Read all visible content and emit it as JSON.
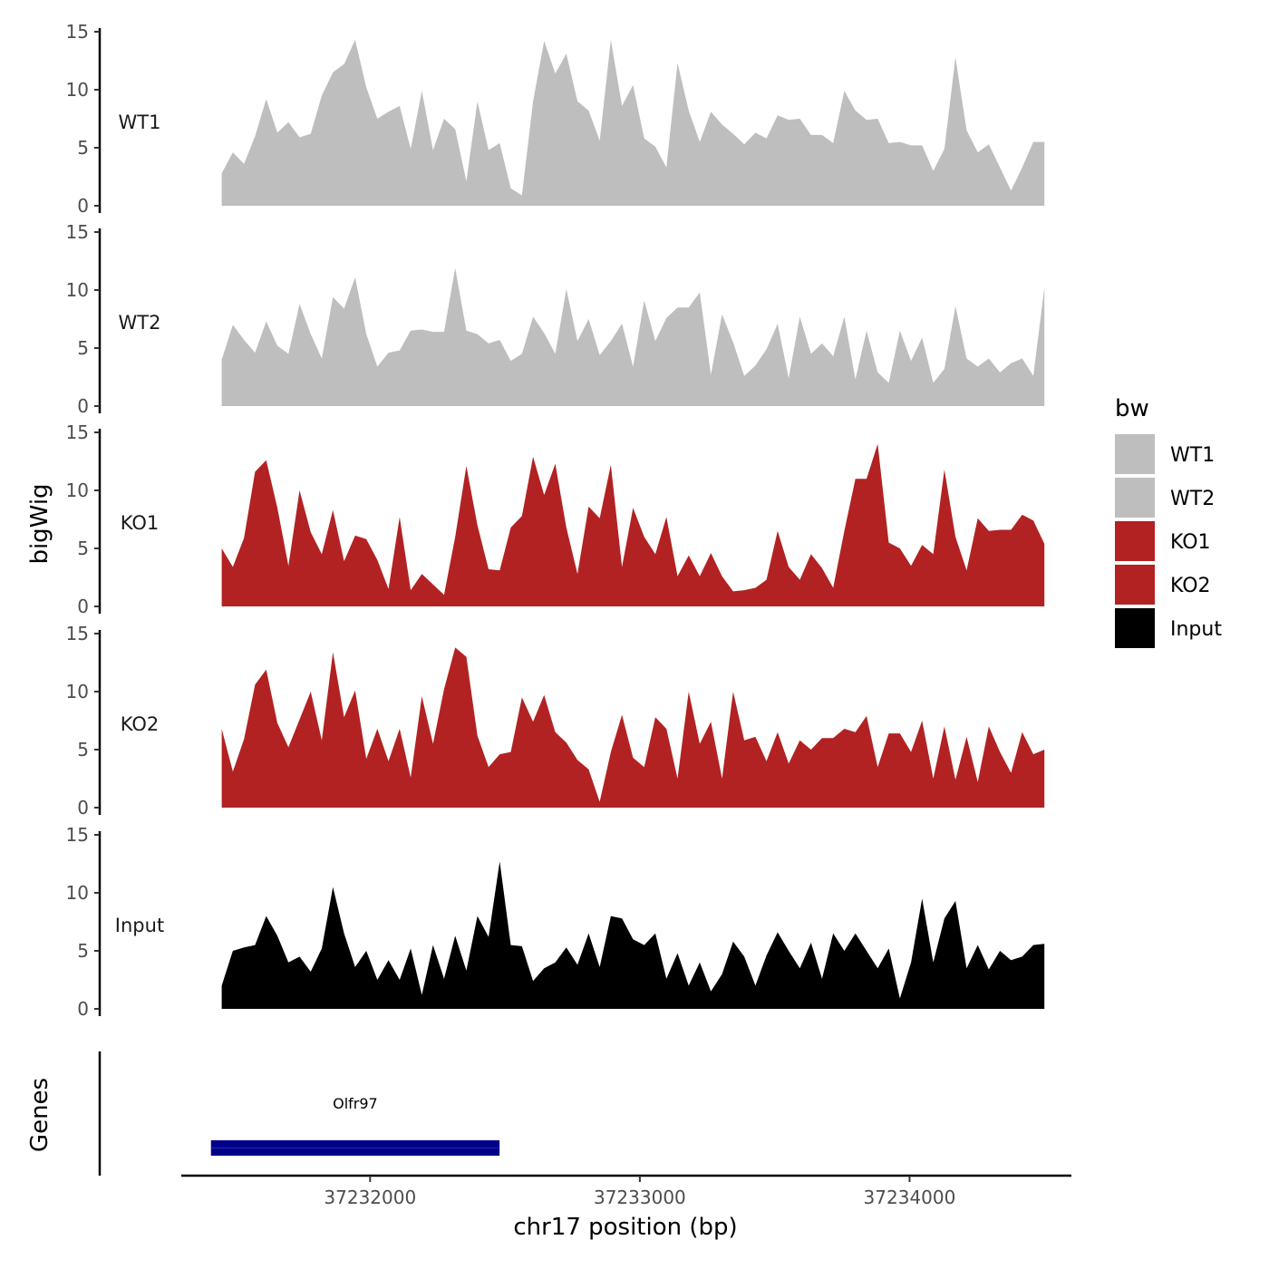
{
  "chart_data": {
    "type": "area",
    "ylabel": "bigWig",
    "xlabel": "chr17 position (bp)",
    "genes_label": "Genes",
    "ylim": [
      0,
      15
    ],
    "yticks": [
      "0",
      "5",
      "10",
      "15"
    ],
    "xlim": [
      37231300,
      37234600
    ],
    "xticks": [
      37232000,
      37233000,
      37234000
    ],
    "xtick_labels": [
      "37232000",
      "37233000",
      "37234000"
    ],
    "region": [
      37231450,
      37234500
    ],
    "legend": {
      "title": "bw",
      "position": "right",
      "entries": [
        {
          "label": "WT1",
          "color": "#bebebe"
        },
        {
          "label": "WT2",
          "color": "#bebebe"
        },
        {
          "label": "KO1",
          "color": "#b22222"
        },
        {
          "label": "KO2",
          "color": "#b22222"
        },
        {
          "label": "Input",
          "color": "#000000"
        }
      ]
    },
    "series": [
      {
        "name": "WT1",
        "color": "#bebebe",
        "values": [
          2.8,
          4.6,
          3.6,
          6.0,
          9.2,
          6.3,
          7.2,
          5.9,
          6.2,
          9.5,
          11.5,
          12.2,
          14.3,
          10.2,
          7.5,
          8.1,
          8.6,
          4.9,
          9.9,
          4.8,
          7.5,
          6.6,
          2.1,
          9.0,
          4.8,
          5.4,
          1.5,
          0.9,
          9.0,
          14.2,
          11.4,
          13.1,
          9.0,
          8.2,
          5.6,
          14.3,
          8.6,
          10.4,
          5.8,
          5.1,
          3.3,
          12.3,
          8.2,
          5.5,
          8.1,
          7.0,
          6.2,
          5.3,
          6.3,
          5.8,
          7.8,
          7.4,
          7.5,
          6.1,
          6.1,
          5.4,
          9.9,
          8.2,
          7.4,
          7.5,
          5.4,
          5.5,
          5.2,
          5.2,
          3.0,
          4.9,
          12.8,
          6.5,
          4.6,
          5.3,
          3.3,
          1.3,
          3.3,
          5.5,
          5.5
        ]
      },
      {
        "name": "WT2",
        "color": "#bebebe",
        "values": [
          4.0,
          7.0,
          5.7,
          4.6,
          7.3,
          5.2,
          4.5,
          8.8,
          6.2,
          4.1,
          9.4,
          8.4,
          11.1,
          6.2,
          3.4,
          4.6,
          4.8,
          6.5,
          6.6,
          6.4,
          6.4,
          11.9,
          6.5,
          6.2,
          5.4,
          5.7,
          3.9,
          4.5,
          7.7,
          6.3,
          4.5,
          10.1,
          5.6,
          7.5,
          4.4,
          5.6,
          7.1,
          3.4,
          9.1,
          5.6,
          7.6,
          8.5,
          8.5,
          9.8,
          2.7,
          7.9,
          5.5,
          2.6,
          3.5,
          4.9,
          7.1,
          2.4,
          7.7,
          4.5,
          5.4,
          4.3,
          7.7,
          2.3,
          6.5,
          2.9,
          2.0,
          6.5,
          3.9,
          5.9,
          2.0,
          3.2,
          8.6,
          4.1,
          3.4,
          4.1,
          2.9,
          3.7,
          4.1,
          2.6,
          10.2
        ]
      },
      {
        "name": "KO1",
        "color": "#b22222",
        "values": [
          5.0,
          3.4,
          5.9,
          11.6,
          12.6,
          8.5,
          3.5,
          10.0,
          6.4,
          4.5,
          8.3,
          3.9,
          6.1,
          5.8,
          4.0,
          1.5,
          7.7,
          1.4,
          2.8,
          1.9,
          1.0,
          6.0,
          12.1,
          7.0,
          3.2,
          3.1,
          6.8,
          7.8,
          12.9,
          9.6,
          12.3,
          6.8,
          2.8,
          8.6,
          7.6,
          12.2,
          3.4,
          8.5,
          6.0,
          4.5,
          7.7,
          2.6,
          4.4,
          2.6,
          4.6,
          2.6,
          1.3,
          1.4,
          1.6,
          2.3,
          6.5,
          3.4,
          2.3,
          4.5,
          3.3,
          1.6,
          6.5,
          11.0,
          11.0,
          14.0,
          5.5,
          5.0,
          3.5,
          5.3,
          4.5,
          11.8,
          6.0,
          3.1,
          7.6,
          6.5,
          6.6,
          6.6,
          7.9,
          7.4,
          5.4
        ]
      },
      {
        "name": "KO2",
        "color": "#b22222",
        "values": [
          6.8,
          3.1,
          5.9,
          10.6,
          11.9,
          7.3,
          5.2,
          7.6,
          10.0,
          5.8,
          13.4,
          7.8,
          10.1,
          4.2,
          6.8,
          4.0,
          6.8,
          2.6,
          9.6,
          5.5,
          10.2,
          13.8,
          13.0,
          6.2,
          3.5,
          4.6,
          4.8,
          9.5,
          7.4,
          9.7,
          6.5,
          5.6,
          4.1,
          3.3,
          0.5,
          4.8,
          8.0,
          4.3,
          3.5,
          7.8,
          6.8,
          2.5,
          10.0,
          5.5,
          7.4,
          2.5,
          10.0,
          5.8,
          6.1,
          4.0,
          6.5,
          3.8,
          5.8,
          5.0,
          6.0,
          6.0,
          6.8,
          6.5,
          7.9,
          3.5,
          6.4,
          6.4,
          4.8,
          7.5,
          2.5,
          7.0,
          2.4,
          6.1,
          2.2,
          7.0,
          4.8,
          3.0,
          6.5,
          4.6,
          5.0
        ]
      },
      {
        "name": "Input",
        "color": "#000000",
        "values": [
          2.0,
          5.0,
          5.3,
          5.5,
          8.0,
          6.3,
          4.0,
          4.5,
          3.2,
          5.2,
          10.5,
          6.5,
          3.6,
          5.0,
          2.5,
          4.2,
          2.5,
          5.2,
          1.2,
          5.5,
          2.6,
          6.3,
          3.3,
          8.0,
          6.2,
          12.7,
          5.5,
          5.4,
          2.4,
          3.5,
          4.0,
          5.3,
          3.8,
          6.5,
          3.6,
          8.0,
          7.8,
          6.0,
          5.5,
          6.5,
          2.6,
          4.8,
          2.0,
          4.0,
          1.5,
          3.0,
          5.8,
          4.5,
          2.0,
          4.6,
          6.6,
          5.0,
          3.5,
          5.7,
          2.6,
          6.5,
          5.0,
          6.5,
          5.0,
          3.5,
          5.2,
          0.9,
          4.0,
          9.5,
          4.0,
          7.8,
          9.3,
          3.5,
          5.5,
          3.4,
          5.0,
          4.2,
          4.5,
          5.5,
          5.6
        ]
      }
    ],
    "genes": [
      {
        "name": "Olfr97",
        "start": 37231410,
        "end": 37232480,
        "color": "#00008b"
      }
    ]
  }
}
